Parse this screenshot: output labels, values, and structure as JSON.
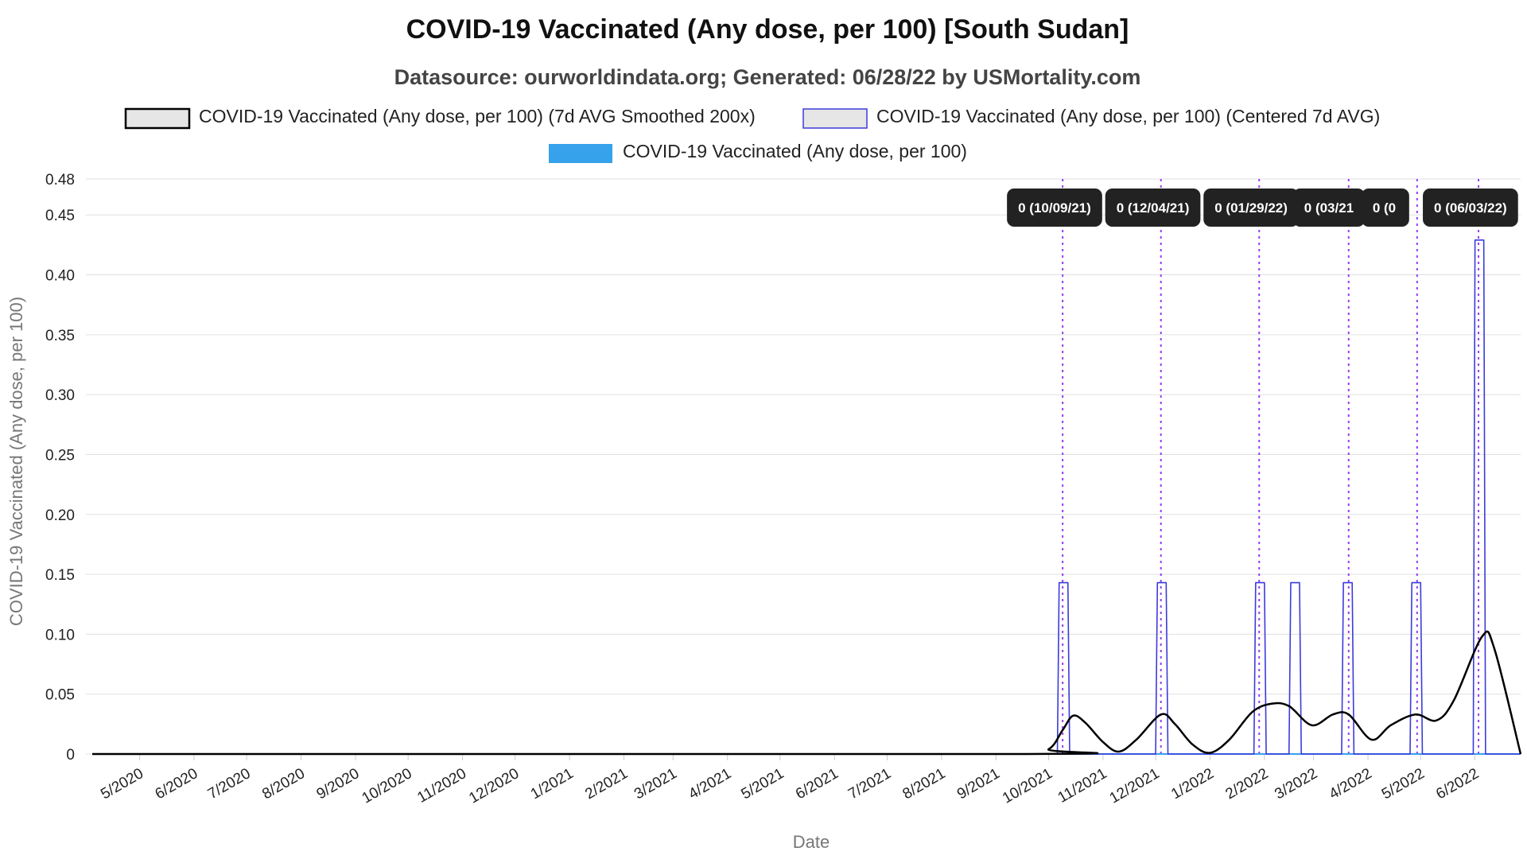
{
  "title": "COVID-19 Vaccinated (Any dose, per 100) [South Sudan]",
  "subtitle": "Datasource: ourworldindata.org; Generated: 06/28/22 by USMortality.com",
  "legend": [
    {
      "label": "COVID-19 Vaccinated (Any dose, per 100) (7d AVG Smoothed 200x)",
      "stroke": "#000000",
      "fill": "#e6e6e6"
    },
    {
      "label": "COVID-19 Vaccinated (Any dose, per 100) (Centered 7d AVG)",
      "stroke": "#3b3bdb",
      "fill": "#e6e6e6"
    },
    {
      "label": "COVID-19 Vaccinated (Any dose, per 100)",
      "stroke": "#36a2eb",
      "fill": "#36a2eb"
    }
  ],
  "chart_data": {
    "type": "line",
    "title": "COVID-19 Vaccinated (Any dose, per 100) [South Sudan]",
    "xlabel": "Date",
    "ylabel": "COVID-19 Vaccinated (Any dose, per 100)",
    "ylim": [
      0,
      0.48
    ],
    "yticks": [
      0,
      0.05,
      0.1,
      0.15,
      0.2,
      0.25,
      0.3,
      0.35,
      0.4,
      0.45,
      0.48
    ],
    "ytick_labels": [
      "0",
      "0.05",
      "0.10",
      "0.15",
      "0.20",
      "0.25",
      "0.30",
      "0.35",
      "0.40",
      "0.45",
      "0.48"
    ],
    "xlim": [
      "2020-04-04",
      "2022-06-27"
    ],
    "x_ticks": [
      {
        "date": "2020-05-01",
        "label": "5/2020"
      },
      {
        "date": "2020-06-01",
        "label": "6/2020"
      },
      {
        "date": "2020-07-01",
        "label": "7/2020"
      },
      {
        "date": "2020-08-01",
        "label": "8/2020"
      },
      {
        "date": "2020-09-01",
        "label": "9/2020"
      },
      {
        "date": "2020-10-01",
        "label": "10/2020"
      },
      {
        "date": "2020-11-01",
        "label": "11/2020"
      },
      {
        "date": "2020-12-01",
        "label": "12/2020"
      },
      {
        "date": "2021-01-01",
        "label": "1/2021"
      },
      {
        "date": "2021-02-01",
        "label": "2/2021"
      },
      {
        "date": "2021-03-01",
        "label": "3/2021"
      },
      {
        "date": "2021-04-01",
        "label": "4/2021"
      },
      {
        "date": "2021-05-01",
        "label": "5/2021"
      },
      {
        "date": "2021-06-01",
        "label": "6/2021"
      },
      {
        "date": "2021-07-01",
        "label": "7/2021"
      },
      {
        "date": "2021-08-01",
        "label": "8/2021"
      },
      {
        "date": "2021-09-01",
        "label": "9/2021"
      },
      {
        "date": "2021-10-01",
        "label": "10/2021"
      },
      {
        "date": "2021-11-01",
        "label": "11/2021"
      },
      {
        "date": "2021-12-01",
        "label": "12/2021"
      },
      {
        "date": "2022-01-01",
        "label": "1/2022"
      },
      {
        "date": "2022-02-01",
        "label": "2/2022"
      },
      {
        "date": "2022-03-01",
        "label": "3/2022"
      },
      {
        "date": "2022-04-01",
        "label": "4/2022"
      },
      {
        "date": "2022-05-01",
        "label": "5/2022"
      },
      {
        "date": "2022-06-01",
        "label": "6/2022"
      }
    ],
    "grid": true,
    "legend_position": "top",
    "series": [
      {
        "name": "COVID-19 Vaccinated (Any dose, per 100) (7d AVG Smoothed 200x)",
        "color": "#000000",
        "curve": "smooth",
        "points": [
          [
            "2020-04-04",
            0
          ],
          [
            "2021-09-15",
            0
          ],
          [
            "2021-10-01",
            0.004
          ],
          [
            "2021-10-09",
            0.02
          ],
          [
            "2021-10-15",
            0.032
          ],
          [
            "2021-10-22",
            0.026
          ],
          [
            "2021-11-01",
            0.01
          ],
          [
            "2021-11-10",
            0.002
          ],
          [
            "2021-11-20",
            0.012
          ],
          [
            "2021-12-04",
            0.033
          ],
          [
            "2021-12-12",
            0.025
          ],
          [
            "2021-12-22",
            0.008
          ],
          [
            "2022-01-01",
            0.001
          ],
          [
            "2022-01-12",
            0.012
          ],
          [
            "2022-01-25",
            0.035
          ],
          [
            "2022-02-05",
            0.042
          ],
          [
            "2022-02-15",
            0.04
          ],
          [
            "2022-02-28",
            0.024
          ],
          [
            "2022-03-12",
            0.033
          ],
          [
            "2022-03-21",
            0.033
          ],
          [
            "2022-04-03",
            0.012
          ],
          [
            "2022-04-14",
            0.024
          ],
          [
            "2022-04-28",
            0.033
          ],
          [
            "2022-05-10",
            0.028
          ],
          [
            "2022-05-20",
            0.045
          ],
          [
            "2022-06-05",
            0.098
          ],
          [
            "2022-06-12",
            0.088
          ],
          [
            "2022-06-27",
            0
          ]
        ]
      },
      {
        "name": "COVID-19 Vaccinated (Any dose, per 100) (Centered 7d AVG)",
        "color": "#3b3bdb",
        "curve": "step",
        "points": [
          [
            "2020-04-04",
            0
          ],
          [
            "2021-10-06",
            0
          ],
          [
            "2021-10-07",
            0.143
          ],
          [
            "2021-10-12",
            0.143
          ],
          [
            "2021-10-13",
            0
          ],
          [
            "2021-12-01",
            0
          ],
          [
            "2021-12-02",
            0.143
          ],
          [
            "2021-12-07",
            0.143
          ],
          [
            "2021-12-08",
            0
          ],
          [
            "2022-01-26",
            0
          ],
          [
            "2022-01-27",
            0.143
          ],
          [
            "2022-02-01",
            0.143
          ],
          [
            "2022-02-02",
            0
          ],
          [
            "2022-02-15",
            0
          ],
          [
            "2022-02-16",
            0.143
          ],
          [
            "2022-02-21",
            0.143
          ],
          [
            "2022-02-22",
            0
          ],
          [
            "2022-03-17",
            0
          ],
          [
            "2022-03-18",
            0.143
          ],
          [
            "2022-03-23",
            0.143
          ],
          [
            "2022-03-24",
            0
          ],
          [
            "2022-04-25",
            0
          ],
          [
            "2022-04-26",
            0.143
          ],
          [
            "2022-05-01",
            0.143
          ],
          [
            "2022-05-02",
            0
          ],
          [
            "2022-05-31",
            0
          ],
          [
            "2022-06-01",
            0.429
          ],
          [
            "2022-06-06",
            0.429
          ],
          [
            "2022-06-07",
            0
          ],
          [
            "2022-06-27",
            0
          ]
        ]
      },
      {
        "name": "COVID-19 Vaccinated (Any dose, per 100)",
        "color": "#36a2eb",
        "curve": "linear",
        "points": [
          [
            "2020-04-04",
            0
          ],
          [
            "2022-06-27",
            0
          ]
        ]
      }
    ],
    "annotations": [
      {
        "date": "2021-10-09",
        "label": "0 (10/09/21)"
      },
      {
        "date": "2021-12-04",
        "label": "0 (12/04/21)"
      },
      {
        "date": "2022-01-29",
        "label": "0 (01/29/22)"
      },
      {
        "date": "2022-03-21",
        "label": "0 (03/21"
      },
      {
        "date": "2022-04-29",
        "label": "0 (0"
      },
      {
        "date": "2022-06-03",
        "label": "0 (06/03/22)"
      }
    ]
  }
}
